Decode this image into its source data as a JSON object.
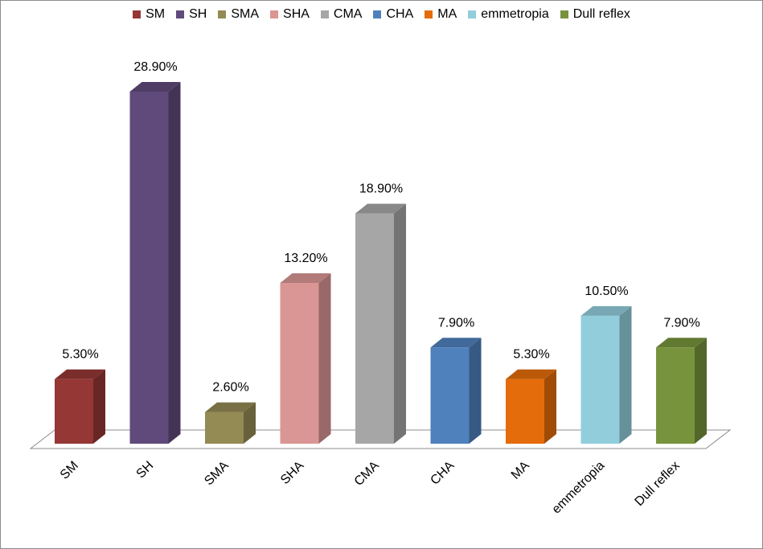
{
  "chart_data": {
    "type": "bar",
    "categories": [
      "SM",
      "SH",
      "SMA",
      "SHA",
      "CMA",
      "CHA",
      "MA",
      "emmetropia",
      "Dull reflex"
    ],
    "values": [
      5.3,
      28.9,
      2.6,
      13.2,
      18.9,
      7.9,
      5.3,
      10.5,
      7.9
    ],
    "data_labels": [
      "5.30%",
      "28.90%",
      "2.60%",
      "13.20%",
      "18.90%",
      "7.90%",
      "5.30%",
      "10.50%",
      "7.90%"
    ],
    "colors": [
      "#953735",
      "#604a7b",
      "#948a54",
      "#d99694",
      "#a6a6a6",
      "#4f81bd",
      "#e46c0a",
      "#92cddc",
      "#77933c"
    ],
    "legend": [
      "SM",
      "SH",
      "SMA",
      "SHA",
      "CMA",
      "CHA",
      "MA",
      "emmetropia",
      "Dull reflex"
    ],
    "legend_position": "top",
    "ylim": [
      0,
      30
    ],
    "grid": false,
    "title": "",
    "xlabel": "",
    "ylabel": ""
  }
}
